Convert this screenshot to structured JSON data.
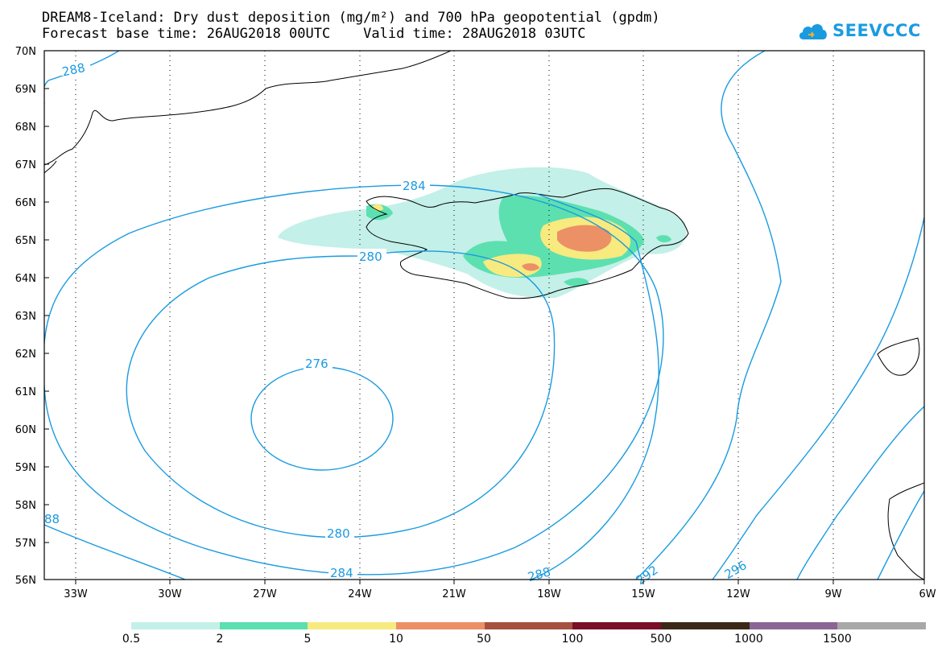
{
  "title_line1": "DREAM8-Iceland: Dry dust deposition (mg/m²) and 700 hPa geopotential (gpdm)",
  "title_line2": "Forecast base time: 26AUG2018 00UTC    Valid time: 28AUG2018 03UTC",
  "logo": {
    "text": "SEEVCCC",
    "icon": "cloud-icon",
    "color": "#1a9be0"
  },
  "axes": {
    "lat_labels": [
      "70N",
      "69N",
      "68N",
      "67N",
      "66N",
      "65N",
      "64N",
      "63N",
      "62N",
      "61N",
      "60N",
      "59N",
      "58N",
      "57N",
      "56N"
    ],
    "lon_labels": [
      "33W",
      "30W",
      "27W",
      "24W",
      "21W",
      "18W",
      "15W",
      "12W",
      "9W",
      "6W"
    ]
  },
  "contour_labels": [
    "288",
    "284",
    "280",
    "276",
    "280",
    "284",
    "288",
    "292",
    "296",
    "88"
  ],
  "legend": {
    "labels": [
      "0.5",
      "2",
      "5",
      "10",
      "50",
      "100",
      "500",
      "1000",
      "1500"
    ],
    "colors": [
      "#c3f0e8",
      "#5ce0b0",
      "#f7ea7f",
      "#ec9066",
      "#a65140",
      "#7a0d28",
      "#3b2816",
      "#8a6596",
      "#a8a8a8"
    ]
  }
}
